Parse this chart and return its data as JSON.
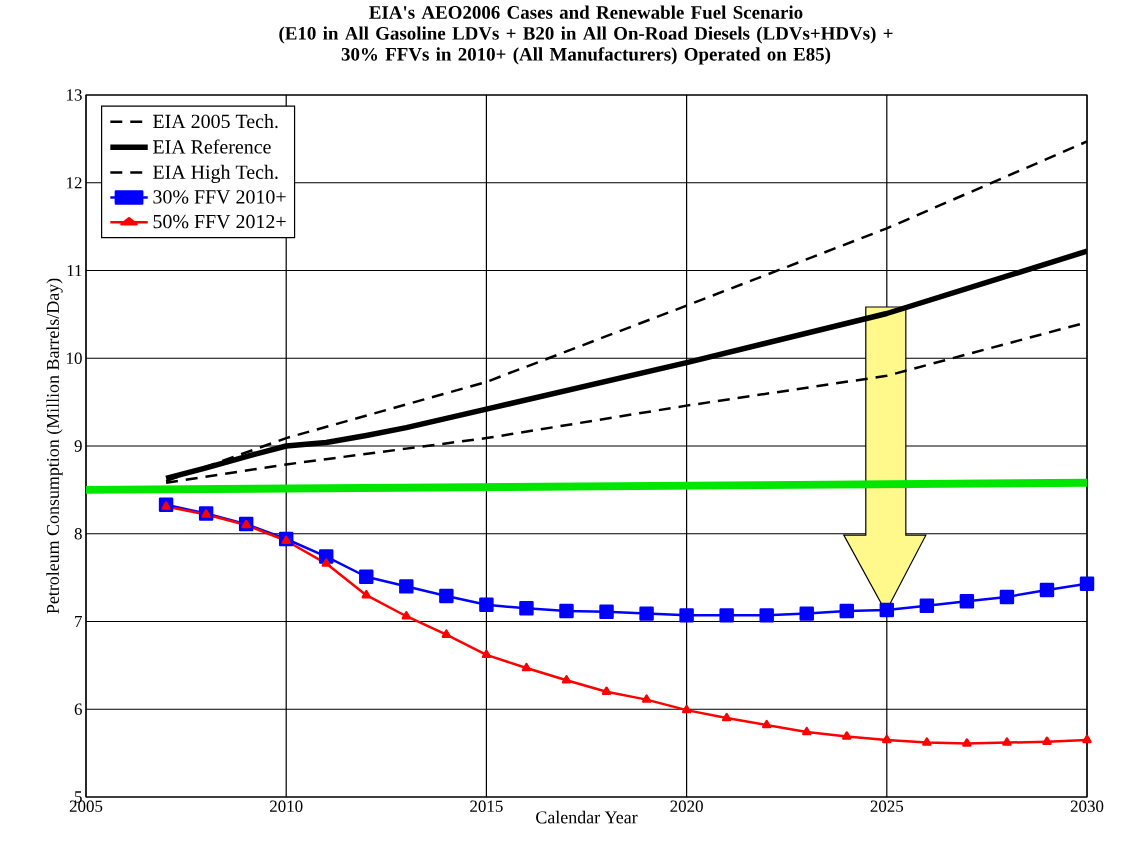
{
  "chart_data": {
    "type": "line",
    "title": "EIA's AEO2006 Cases and Renewable Fuel Scenario\n(E10 in All Gasoline LDVs + B20 in All On-Road Diesels (LDVs+HDVs) +\n30% FFVs in 2010+ (All Manufacturers) Operated on E85)",
    "xlabel": "Calendar Year",
    "ylabel": "Petroleum Consumption (Million Barrels/Day)",
    "xlim": [
      2005,
      2030
    ],
    "ylim": [
      5,
      13
    ],
    "xticks": [
      2005,
      2010,
      2015,
      2020,
      2025,
      2030
    ],
    "yticks": [
      5,
      6,
      7,
      8,
      9,
      10,
      11,
      12,
      13
    ],
    "grid": true,
    "legend": "top left",
    "series": [
      {
        "name": "EIA 2005 Tech.",
        "color": "#000000",
        "line_style": "dashed",
        "marker": "none",
        "x": [
          2007,
          2010,
          2015,
          2020,
          2025,
          2030
        ],
        "values": [
          8.6,
          9.09,
          9.73,
          10.6,
          11.48,
          12.47
        ]
      },
      {
        "name": "EIA Reference",
        "color": "#000000",
        "line_style": "solid",
        "marker": "none",
        "x": [
          2007,
          2008,
          2009,
          2010,
          2011,
          2012,
          2013,
          2015,
          2020,
          2025,
          2030
        ],
        "values": [
          8.63,
          8.75,
          8.88,
          9.0,
          9.04,
          9.12,
          9.21,
          9.42,
          9.95,
          10.51,
          11.22
        ]
      },
      {
        "name": "EIA High Tech.",
        "color": "#000000",
        "line_style": "dashed",
        "marker": "none",
        "x": [
          2007,
          2010,
          2013,
          2015,
          2020,
          2025,
          2030
        ],
        "values": [
          8.58,
          8.79,
          8.97,
          9.09,
          9.46,
          9.8,
          10.41
        ]
      },
      {
        "name": "30% FFV 2010+",
        "color": "#0000ff",
        "line_style": "solid",
        "marker": "square",
        "x": [
          2007,
          2008,
          2009,
          2010,
          2011,
          2012,
          2013,
          2014,
          2015,
          2016,
          2017,
          2018,
          2019,
          2020,
          2021,
          2022,
          2023,
          2024,
          2025,
          2026,
          2027,
          2028,
          2029,
          2030
        ],
        "values": [
          8.33,
          8.23,
          8.11,
          7.94,
          7.74,
          7.51,
          7.4,
          7.29,
          7.19,
          7.15,
          7.12,
          7.11,
          7.09,
          7.07,
          7.07,
          7.07,
          7.09,
          7.12,
          7.13,
          7.18,
          7.23,
          7.28,
          7.36,
          7.43
        ]
      },
      {
        "name": "50% FFV 2012+",
        "color": "#ff0000",
        "line_style": "solid",
        "marker": "triangle",
        "x": [
          2007,
          2008,
          2009,
          2010,
          2011,
          2012,
          2013,
          2014,
          2015,
          2016,
          2017,
          2018,
          2019,
          2020,
          2021,
          2022,
          2023,
          2024,
          2025,
          2026,
          2027,
          2028,
          2029,
          2030
        ],
        "values": [
          8.31,
          8.22,
          8.1,
          7.92,
          7.66,
          7.3,
          7.06,
          6.85,
          6.62,
          6.47,
          6.33,
          6.2,
          6.11,
          5.99,
          5.9,
          5.82,
          5.74,
          5.69,
          5.65,
          5.62,
          5.61,
          5.62,
          5.63,
          5.65
        ]
      },
      {
        "color": "#00e600",
        "line_style": "solid",
        "marker": "none",
        "x": [
          2005,
          2030
        ],
        "values": [
          8.5,
          8.58
        ]
      }
    ]
  }
}
